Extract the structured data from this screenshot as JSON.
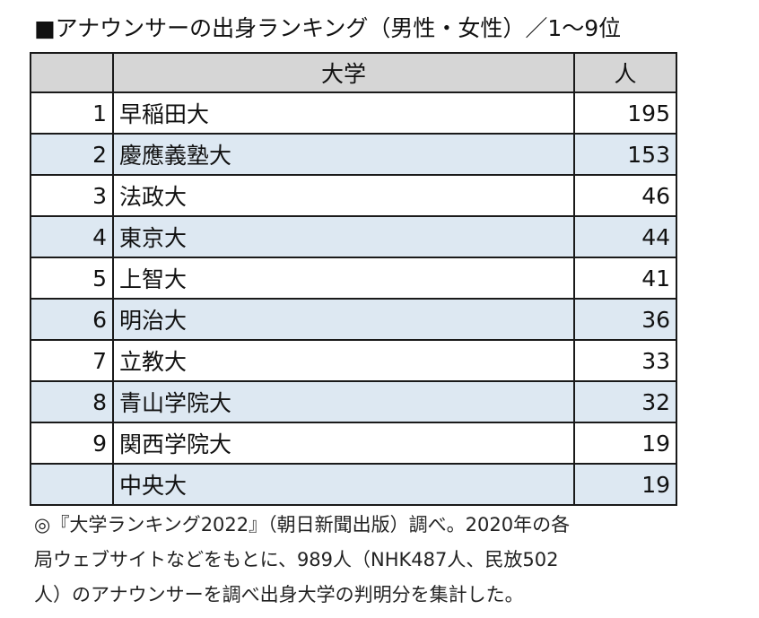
{
  "title": "■アナウンサーの出身ランキング（男性・女性）／1〜9位",
  "table": {
    "headers": {
      "rank": "",
      "university": "大学",
      "count": "人"
    },
    "rows": [
      {
        "rank": "1",
        "university": "早稲田大",
        "count": "195"
      },
      {
        "rank": "2",
        "university": "慶應義塾大",
        "count": "153"
      },
      {
        "rank": "3",
        "university": "法政大",
        "count": "46"
      },
      {
        "rank": "4",
        "university": "東京大",
        "count": "44"
      },
      {
        "rank": "5",
        "university": "上智大",
        "count": "41"
      },
      {
        "rank": "6",
        "university": "明治大",
        "count": "36"
      },
      {
        "rank": "7",
        "university": "立教大",
        "count": "33"
      },
      {
        "rank": "8",
        "university": "青山学院大",
        "count": "32"
      },
      {
        "rank": "9",
        "university": "関西学院大",
        "count": "19"
      },
      {
        "rank": "",
        "university": "中央大",
        "count": "19"
      }
    ]
  },
  "note": {
    "lines": [
      "◎『大学ランキング2022』（朝日新聞出版）調べ。2020年の各",
      "局ウェブサイトなどをもとに、989人（NHK487人、民放502",
      "人）のアナウンサーを調べ出身大学の判明分を集計した。"
    ]
  },
  "colors": {
    "header_bg": "#d6d6d6",
    "alt_row_bg": "#dde8f2",
    "border": "#1a1a1a"
  }
}
